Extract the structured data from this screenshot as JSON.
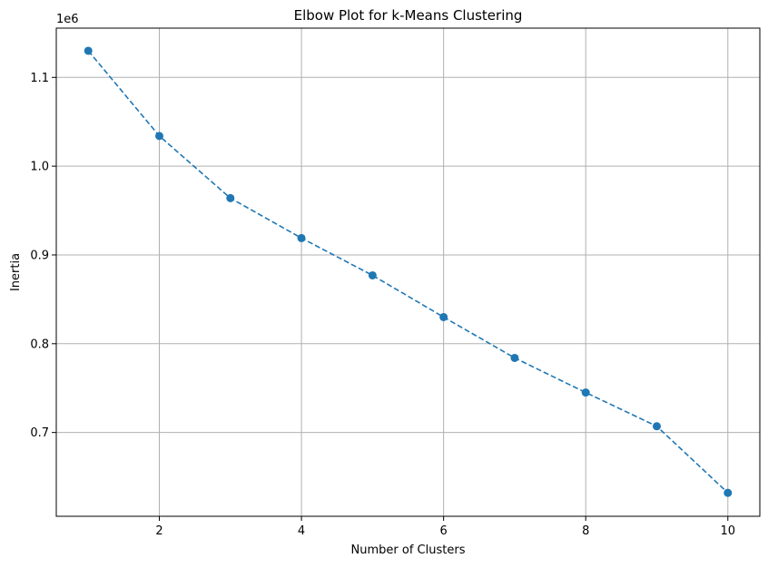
{
  "chart_data": {
    "type": "line",
    "title": "Elbow Plot for k-Means Clustering",
    "xlabel": "Number of Clusters",
    "ylabel": "Inertia",
    "y_offset_label": "1e6",
    "xlim": [
      0.55,
      10.45
    ],
    "ylim": [
      0.6056,
      1.1555
    ],
    "x_ticks": [
      2,
      4,
      6,
      8,
      10
    ],
    "y_ticks": [
      0.7,
      0.8,
      0.9,
      1.0,
      1.1
    ],
    "x_tick_labels": [
      "2",
      "4",
      "6",
      "8",
      "10"
    ],
    "y_tick_labels": [
      "0.7",
      "0.8",
      "0.9",
      "1.0",
      "1.1"
    ],
    "grid": true,
    "series": [
      {
        "x": [
          1,
          2,
          3,
          4,
          5,
          6,
          7,
          8,
          9,
          10
        ],
        "y": [
          1.13,
          1.034,
          0.964,
          0.919,
          0.877,
          0.83,
          0.784,
          0.745,
          0.707,
          0.632
        ],
        "color": "#1f77b4",
        "line_style": "dashed",
        "marker": "circle"
      }
    ]
  }
}
